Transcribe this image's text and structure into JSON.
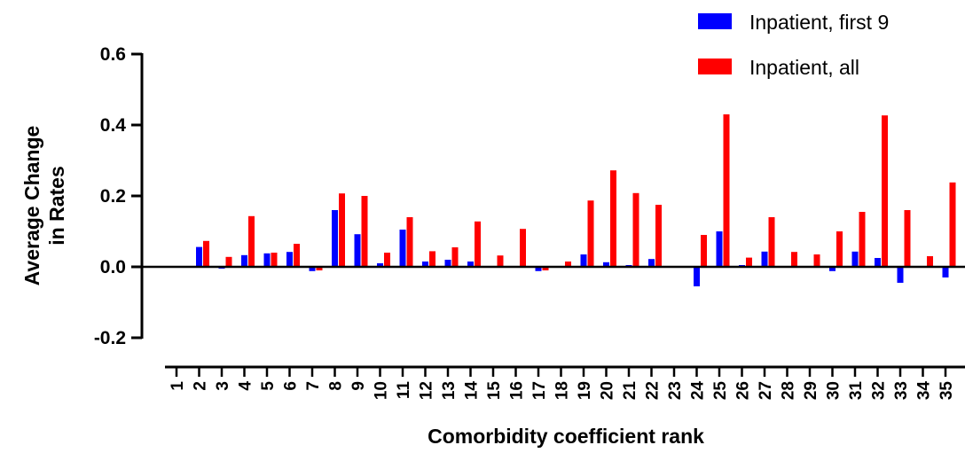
{
  "chart_data": {
    "type": "bar",
    "ylabel_line1": "Average Change",
    "ylabel_line2": "in Rates",
    "xlabel": "Comorbidity coefficient rank",
    "ylim": [
      -0.2,
      0.6
    ],
    "yticks": [
      -0.2,
      0.0,
      0.2,
      0.4,
      0.6
    ],
    "ytick_labels": [
      "-0.2",
      "0.0",
      "0.2",
      "0.4",
      "0.6"
    ],
    "grid": false,
    "legend_position": "top-right",
    "categories": [
      "1",
      "2",
      "3",
      "4",
      "5",
      "6",
      "7",
      "8",
      "9",
      "10",
      "11",
      "12",
      "13",
      "14",
      "15",
      "16",
      "17",
      "18",
      "19",
      "20",
      "21",
      "22",
      "23",
      "24",
      "25",
      "26",
      "27",
      "28",
      "29",
      "30",
      "31",
      "32",
      "33",
      "34",
      "35"
    ],
    "series": [
      {
        "name": "Inpatient, first 9",
        "color": "#0000ff",
        "values": [
          0.0,
          0.056,
          -0.005,
          0.033,
          0.038,
          0.042,
          -0.012,
          0.16,
          0.092,
          0.01,
          0.105,
          0.015,
          0.02,
          0.015,
          0.0,
          0.0,
          -0.012,
          0.0,
          0.035,
          0.013,
          0.005,
          0.022,
          0.0,
          -0.055,
          0.1,
          0.005,
          0.043,
          0.0,
          0.0,
          -0.012,
          0.043,
          0.025,
          -0.045,
          0.0,
          -0.03
        ]
      },
      {
        "name": "Inpatient, all",
        "color": "#ff0000",
        "values": [
          0.0,
          0.073,
          0.028,
          0.143,
          0.04,
          0.065,
          -0.01,
          0.207,
          0.2,
          0.04,
          0.14,
          0.044,
          0.055,
          0.128,
          0.032,
          0.107,
          -0.01,
          0.015,
          0.187,
          0.272,
          0.208,
          0.175,
          0.0,
          0.09,
          0.43,
          0.026,
          0.14,
          0.042,
          0.035,
          0.1,
          0.155,
          0.427,
          0.16,
          0.03,
          0.238
        ]
      }
    ]
  }
}
